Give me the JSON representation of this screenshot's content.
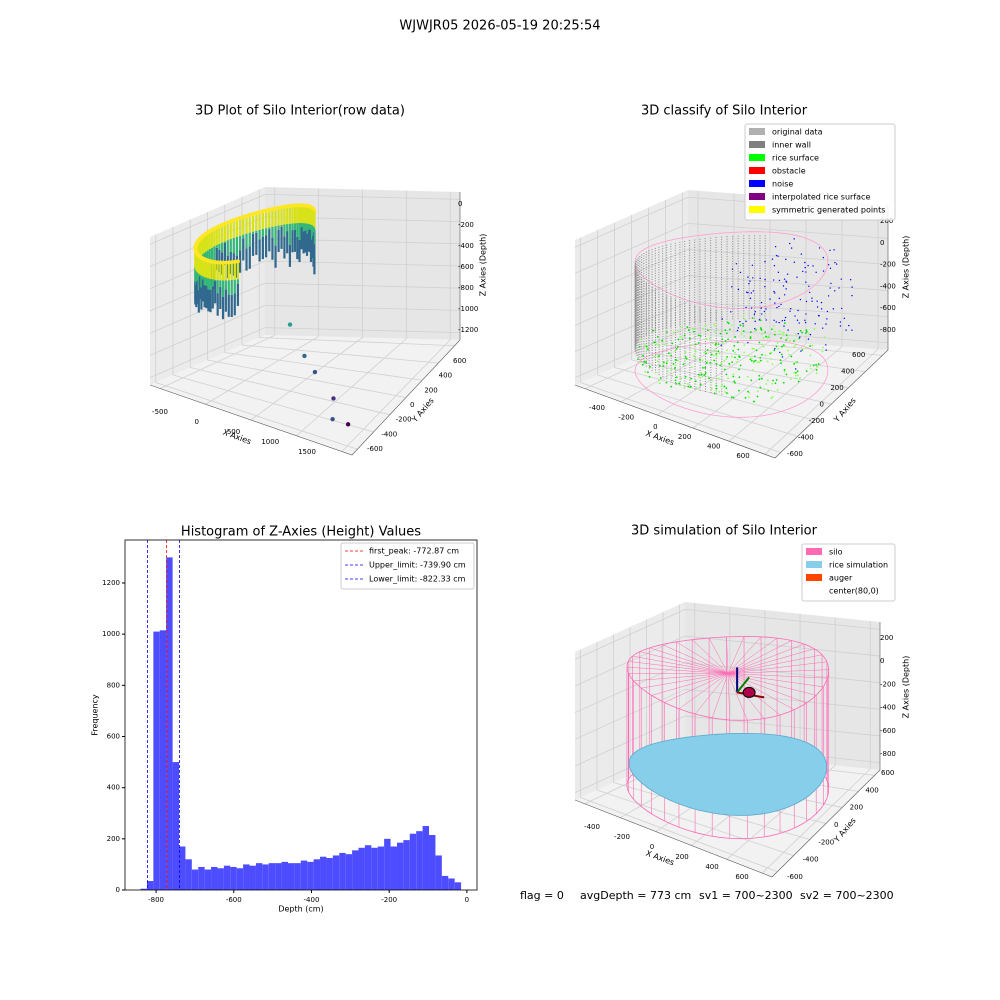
{
  "suptitle": "WJWJR05 2026-05-19 20:25:54",
  "chart_data": [
    {
      "type": "scatter3d",
      "title": "3D Plot of Silo Interior(row data)",
      "xlabel": "X Axies",
      "ylabel": "Y Axies",
      "zlabel": "Z Axies (Depth)",
      "xticks": [
        -500,
        0,
        500,
        1000,
        1500
      ],
      "yticks": [
        -600,
        -400,
        -200,
        0,
        200,
        400,
        600
      ],
      "zticks": [
        0,
        -200,
        -400,
        -600,
        -800,
        -1000,
        -1200
      ]
    },
    {
      "type": "scatter3d",
      "title": "3D classify of Silo Interior",
      "xlabel": "X Axies",
      "ylabel": "Y Axies",
      "zlabel": "Z Axies (Depth)",
      "xticks": [
        -400,
        -200,
        0,
        200,
        400,
        600
      ],
      "yticks": [
        -600,
        -400,
        -200,
        0,
        200,
        400,
        600
      ],
      "zticks": [
        200,
        0,
        -200,
        -400,
        -600,
        -800
      ],
      "legend": [
        {
          "name": "original data",
          "color": "#b0b0b0"
        },
        {
          "name": "inner wall",
          "color": "#808080"
        },
        {
          "name": "rice surface",
          "color": "#00ff00"
        },
        {
          "name": "obstacle",
          "color": "#ff0000"
        },
        {
          "name": "noise",
          "color": "#0000ff"
        },
        {
          "name": "interpolated rice surface",
          "color": "#800080"
        },
        {
          "name": "symmetric generated points",
          "color": "#ffff00"
        }
      ]
    },
    {
      "type": "histogram",
      "title": "Histogram of Z-Axies (Height) Values",
      "xlabel": "Depth (cm)",
      "ylabel": "Frequency",
      "color": "#4d4dff",
      "bins": [
        -840,
        -823.5,
        -807,
        -790.5,
        -774,
        -757.5,
        -741,
        -724.5,
        -708,
        -691.5,
        -675,
        -658.5,
        -642,
        -625.5,
        -609,
        -592.5,
        -576,
        -559.5,
        -543,
        -526.5,
        -510,
        -493.5,
        -477,
        -460.5,
        -444,
        -427.5,
        -411,
        -394.5,
        -378,
        -361.5,
        -345,
        -328.5,
        -312,
        -295.5,
        -279,
        -262.5,
        -246,
        -229.5,
        -213,
        -196.5,
        -180,
        -163.5,
        -147,
        -130.5,
        -114,
        -97.5,
        -81,
        -64.5,
        -48,
        -31.5,
        -15
      ],
      "counts": [
        5,
        35,
        1010,
        1015,
        1300,
        500,
        170,
        120,
        80,
        90,
        80,
        90,
        85,
        95,
        90,
        85,
        100,
        95,
        105,
        100,
        105,
        105,
        110,
        105,
        105,
        115,
        110,
        120,
        130,
        125,
        135,
        145,
        140,
        155,
        165,
        175,
        165,
        170,
        200,
        170,
        185,
        195,
        220,
        230,
        250,
        215,
        135,
        55,
        45,
        30
      ],
      "xlim": [
        -880,
        26
      ],
      "ylim": [
        0,
        1368
      ],
      "xticks": [
        -800,
        -600,
        -400,
        -200,
        0
      ],
      "yticks": [
        0,
        200,
        400,
        600,
        800,
        1000,
        1200
      ],
      "vlines": [
        {
          "name": "first_peak: -772.87 cm",
          "value": -772.87,
          "color": "#ff0000"
        },
        {
          "name": "Upper_limit: -739.90 cm",
          "value": -739.9,
          "color": "#0000ff"
        },
        {
          "name": "Lower_limit: -822.33 cm",
          "value": -822.33,
          "color": "#0000ff"
        }
      ]
    },
    {
      "type": "scatter3d",
      "title": "3D simulation of Silo Interior",
      "xlabel": "X Axies",
      "ylabel": "Y Axies",
      "zlabel": "Z Axies (Depth)",
      "xticks": [
        -400,
        -200,
        0,
        200,
        400,
        600
      ],
      "yticks": [
        -600,
        -400,
        -200,
        0,
        200,
        400,
        600
      ],
      "zticks": [
        200,
        0,
        -200,
        -400,
        -600,
        -800
      ],
      "legend": [
        {
          "name": "silo",
          "color": "#ff69b4"
        },
        {
          "name": "rice simulation",
          "color": "#87ceeb"
        },
        {
          "name": "auger",
          "color": "#ff4500"
        },
        {
          "name": "center(80,0)",
          "color": "#ffffff"
        }
      ]
    }
  ],
  "footer": [
    "flag = 0",
    "avgDepth = 773 cm",
    "sv1 = 700~2300",
    "sv2 = 700~2300"
  ]
}
